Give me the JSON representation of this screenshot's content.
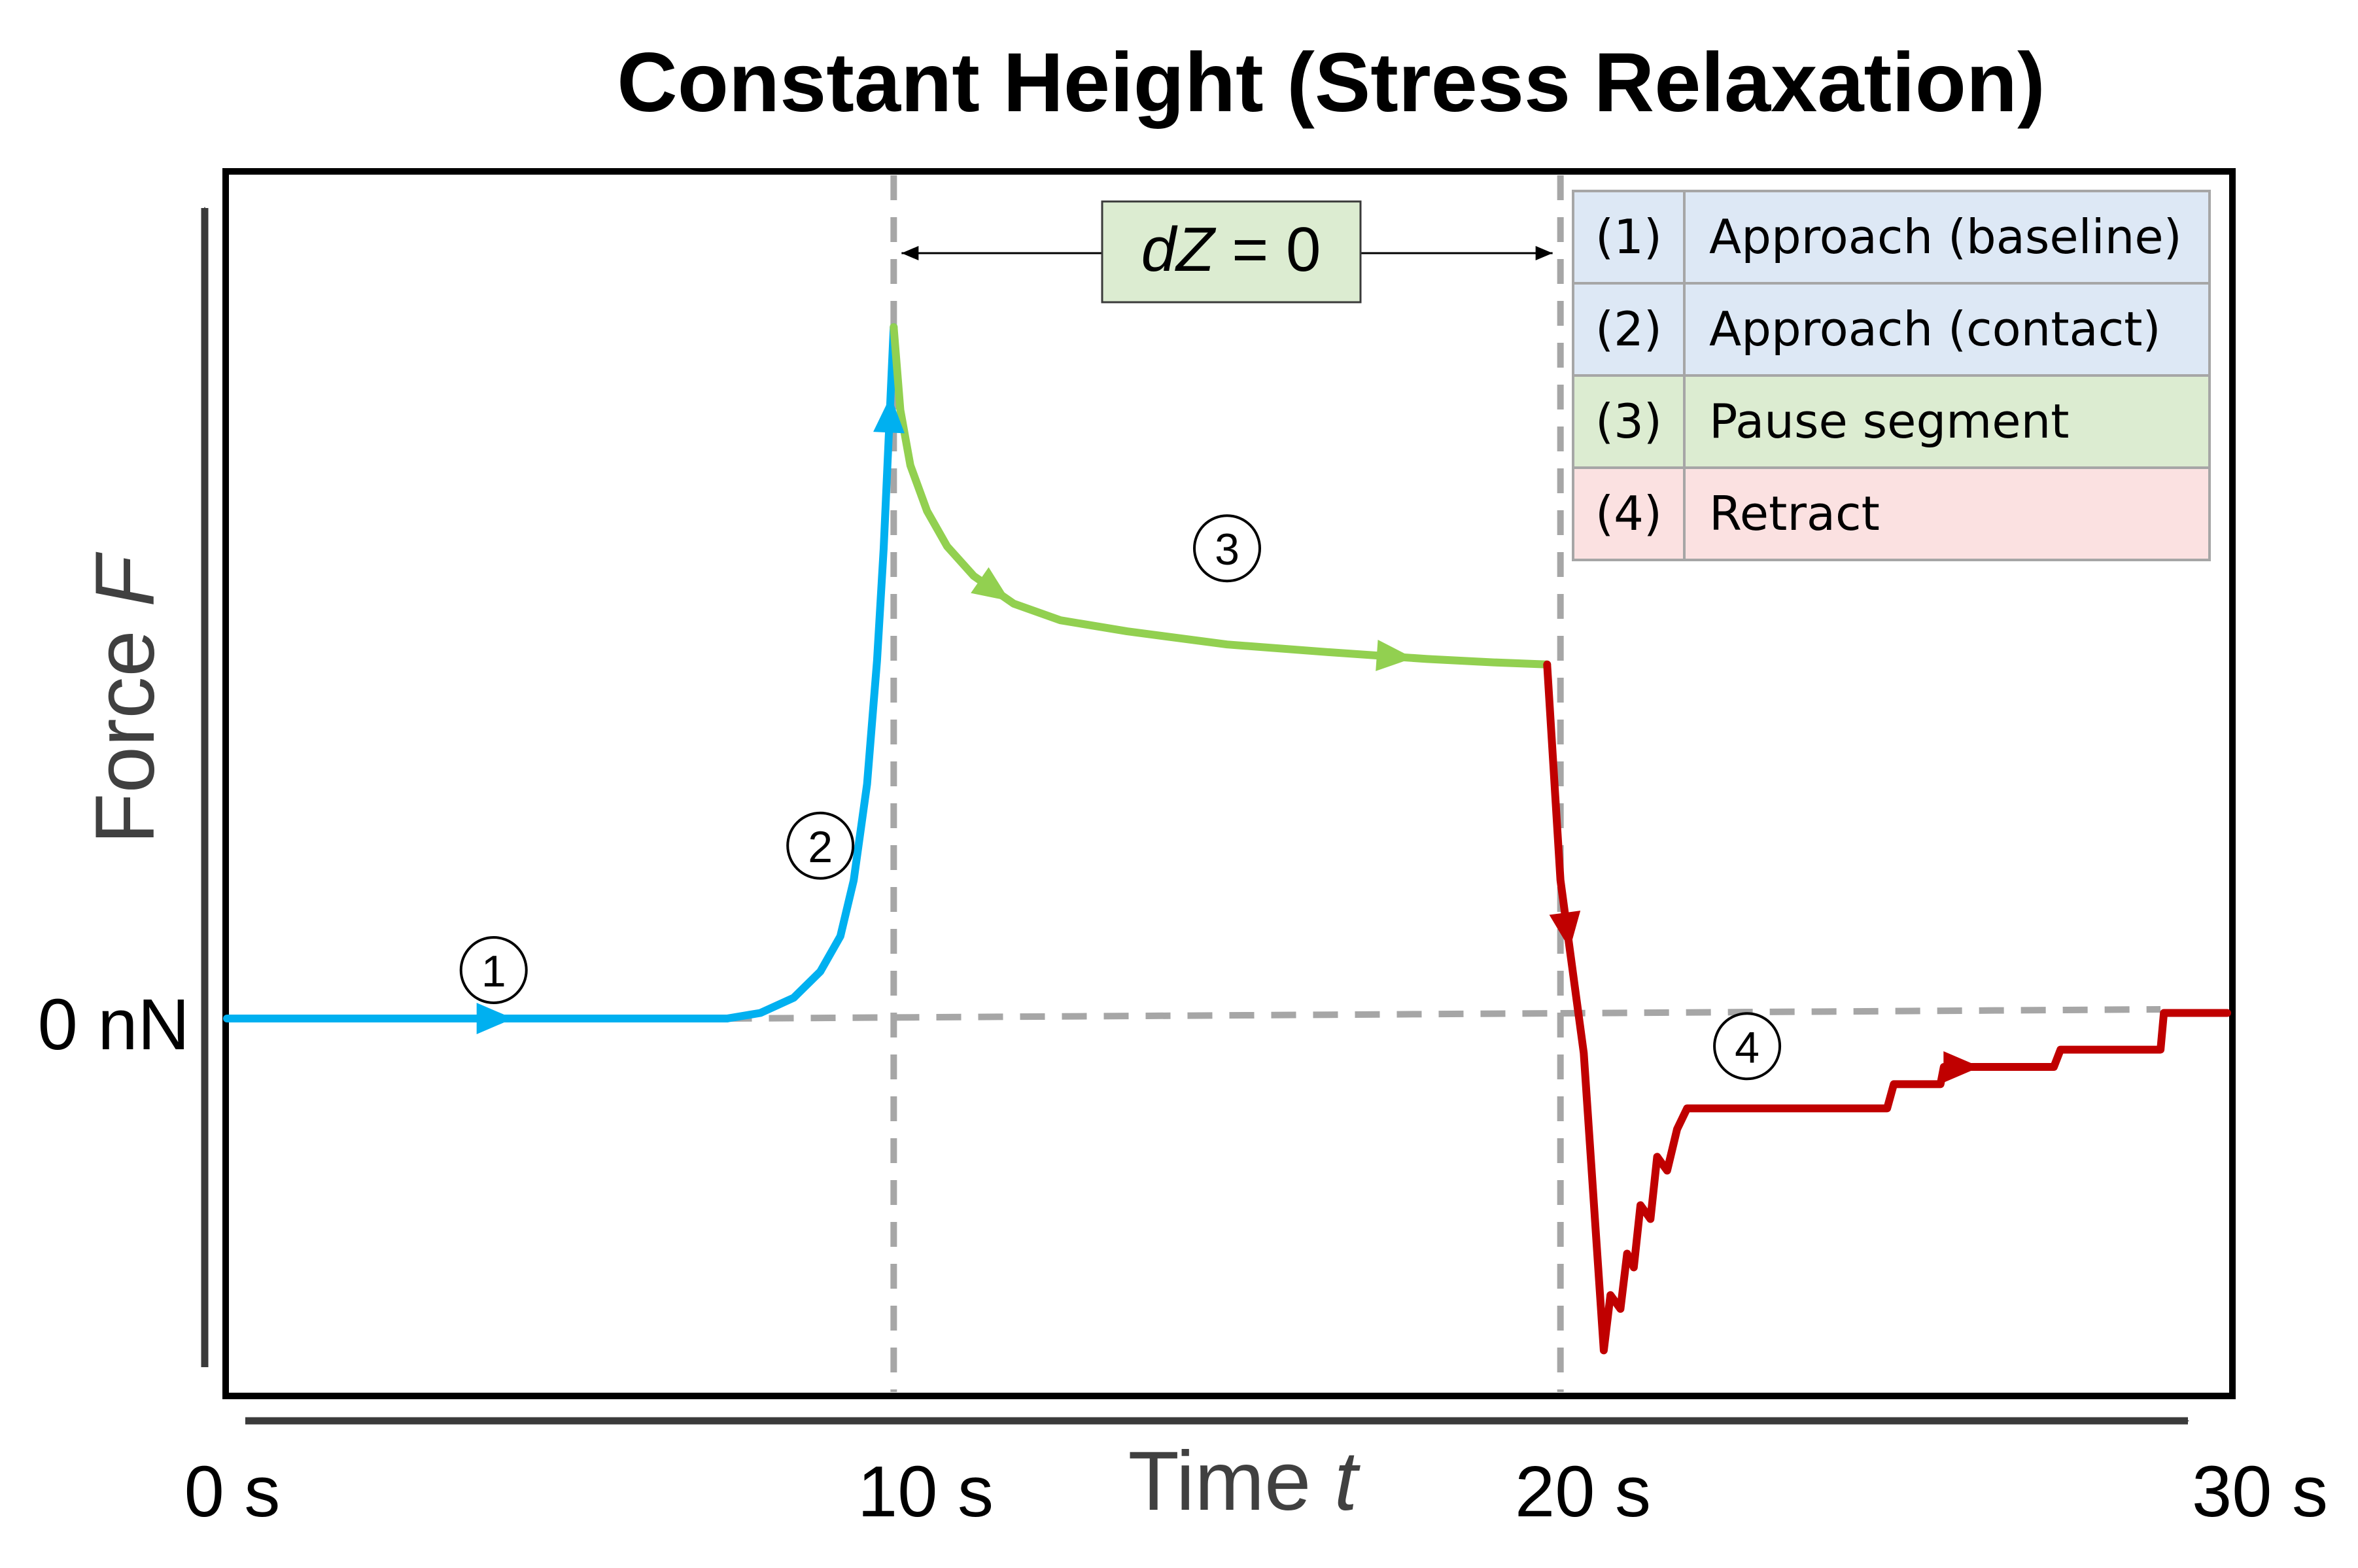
{
  "chart_data": {
    "type": "line",
    "title": "Constant Height (Stress Relaxation)",
    "xlabel": "Time",
    "xlabel_var": "t",
    "ylabel": "Force",
    "ylabel_var": "F",
    "xlim": [
      0,
      30
    ],
    "x_unit": "s",
    "y_zero_label": "0 nN",
    "x_tick_labels": [
      {
        "t": 0,
        "label": "0 s"
      },
      {
        "t": 10,
        "label": "10 s"
      },
      {
        "t": 20,
        "label": "20 s"
      },
      {
        "t": 30,
        "label": "30 s"
      }
    ],
    "vertical_markers": [
      10,
      20
    ],
    "annotation": {
      "label_italic": "dZ",
      "label_rest": " = 0",
      "from": 10,
      "to": 20
    },
    "legend_placement": "top-right",
    "legend": [
      {
        "number": "(1)",
        "label": "Approach (baseline)",
        "color": "#dde8f5"
      },
      {
        "number": "(2)",
        "label": "Approach (contact)",
        "color": "#dde8f5"
      },
      {
        "number": "(3)",
        "label": "Pause segment",
        "color": "#dcecd1"
      },
      {
        "number": "(4)",
        "label": "Retract",
        "color": "#fbe1e1"
      }
    ],
    "y_units": "relative (0 = baseline, 1 = peak)",
    "series": [
      {
        "name": "Approach (baseline)",
        "segment": "1",
        "color": "#00b0f0",
        "x": [
          0,
          1.5,
          3,
          4.5,
          6,
          7.5
        ],
        "y": [
          0,
          0,
          0,
          0,
          0,
          0
        ]
      },
      {
        "name": "Approach (contact)",
        "segment": "2",
        "color": "#00b0f0",
        "x": [
          7.5,
          8.0,
          8.5,
          8.9,
          9.2,
          9.4,
          9.6,
          9.75,
          9.85,
          10.0
        ],
        "y": [
          0,
          0.008,
          0.03,
          0.068,
          0.119,
          0.2,
          0.339,
          0.517,
          0.68,
          1.0
        ]
      },
      {
        "name": "Pause segment",
        "segment": "3",
        "color": "#92d050",
        "x": [
          10.0,
          10.1,
          10.25,
          10.5,
          10.8,
          11.2,
          11.8,
          12.5,
          13.5,
          15.0,
          16.5,
          18.0,
          19.0,
          19.8
        ],
        "y": [
          1.0,
          0.88,
          0.8,
          0.734,
          0.683,
          0.64,
          0.6,
          0.576,
          0.56,
          0.541,
          0.53,
          0.52,
          0.515,
          0.512
        ]
      },
      {
        "name": "Retract",
        "segment": "4",
        "color": "#c00000",
        "x": [
          19.8,
          20.0,
          20.35,
          20.65,
          20.75,
          20.9,
          21.0,
          21.1,
          21.2,
          21.35,
          21.45,
          21.6,
          21.75,
          21.9,
          22.1,
          23.0,
          24.0,
          24.9,
          25.0,
          25.7,
          25.75,
          26.5,
          27.0,
          27.4,
          27.5,
          29.0,
          29.05,
          30.0
        ],
        "y": [
          0.512,
          0.2,
          -0.05,
          -0.48,
          -0.4,
          -0.42,
          -0.34,
          -0.36,
          -0.27,
          -0.29,
          -0.2,
          -0.22,
          -0.16,
          -0.13,
          -0.13,
          -0.13,
          -0.13,
          -0.13,
          -0.095,
          -0.095,
          -0.07,
          -0.07,
          -0.07,
          -0.07,
          -0.045,
          -0.045,
          0.008,
          0.008
        ]
      }
    ],
    "direction_arrows": [
      {
        "segment": "1",
        "at_x": 4.0
      },
      {
        "segment": "2",
        "at_x": 9.94
      },
      {
        "segment": "3",
        "at_x": 11.5
      },
      {
        "segment": "3",
        "at_x": 17.5
      },
      {
        "segment": "4",
        "at_x": 20.1
      },
      {
        "segment": "4",
        "at_x": 26.0
      }
    ],
    "segment_markers": [
      {
        "label": "1",
        "x": 4.0,
        "y": 0.07
      },
      {
        "label": "2",
        "x": 8.9,
        "y": 0.25
      },
      {
        "label": "3",
        "x": 15.0,
        "y": 0.68
      },
      {
        "label": "4",
        "x": 22.8,
        "y": -0.04
      }
    ]
  }
}
